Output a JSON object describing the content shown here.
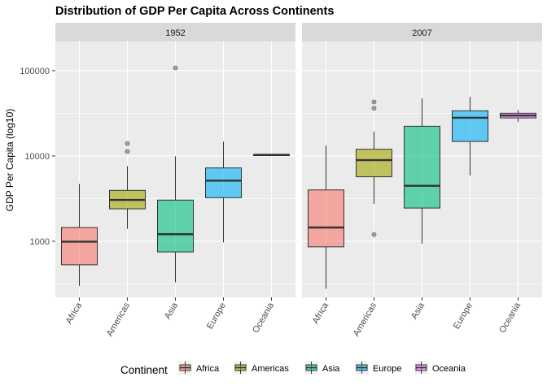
{
  "chart_data": {
    "type": "boxplot",
    "title": "Distribution of GDP Per Capita Across Continents",
    "ylabel": "GDP Per Capita (log10)",
    "xlabel": "",
    "y_scale": "log10",
    "ylim": [
      220,
      220000
    ],
    "y_ticks": [
      1000,
      10000,
      100000
    ],
    "y_tick_labels": [
      "1000",
      "10000",
      "100000"
    ],
    "grid": true,
    "legend_position": "bottom",
    "legend_title": "Continent",
    "categories": [
      "Africa",
      "Americas",
      "Asia",
      "Europe",
      "Oceania"
    ],
    "colors": {
      "Africa": "#F8766D",
      "Americas": "#A3A500",
      "Asia": "#00BF7D",
      "Europe": "#00B0F6",
      "Oceania": "#E76BF3"
    },
    "panels": [
      {
        "label": "1952",
        "boxes": [
          {
            "category": "Africa",
            "whisker_low": 300,
            "q1": 530,
            "median": 990,
            "q3": 1450,
            "whisker_high": 4700,
            "outliers": []
          },
          {
            "category": "Americas",
            "whisker_low": 1400,
            "q1": 2400,
            "median": 3050,
            "q3": 3950,
            "whisker_high": 7600,
            "outliers": [
              11300,
              13990
            ]
          },
          {
            "category": "Asia",
            "whisker_low": 330,
            "q1": 750,
            "median": 1210,
            "q3": 3040,
            "whisker_high": 9900,
            "outliers": [
              108000
            ]
          },
          {
            "category": "Europe",
            "whisker_low": 970,
            "q1": 3240,
            "median": 5140,
            "q3": 7240,
            "whisker_high": 14700,
            "outliers": []
          },
          {
            "category": "Oceania",
            "whisker_low": 10040,
            "q1": 10100,
            "median": 10300,
            "q3": 10400,
            "whisker_high": 10560,
            "outliers": []
          }
        ]
      },
      {
        "label": "2007",
        "boxes": [
          {
            "category": "Africa",
            "whisker_low": 277,
            "q1": 860,
            "median": 1450,
            "q3": 4000,
            "whisker_high": 13200,
            "outliers": []
          },
          {
            "category": "Americas",
            "whisker_low": 2750,
            "q1": 5700,
            "median": 8950,
            "q3": 11980,
            "whisker_high": 19300,
            "outliers": [
              1200,
              36300,
              43000
            ]
          },
          {
            "category": "Asia",
            "whisker_low": 940,
            "q1": 2450,
            "median": 4470,
            "q3": 22300,
            "whisker_high": 47300,
            "outliers": []
          },
          {
            "category": "Europe",
            "whisker_low": 5900,
            "q1": 14800,
            "median": 28050,
            "q3": 33800,
            "whisker_high": 49400,
            "outliers": []
          },
          {
            "category": "Oceania",
            "whisker_low": 25200,
            "q1": 27900,
            "median": 29800,
            "q3": 31700,
            "whisker_high": 34400,
            "outliers": []
          }
        ]
      }
    ]
  }
}
